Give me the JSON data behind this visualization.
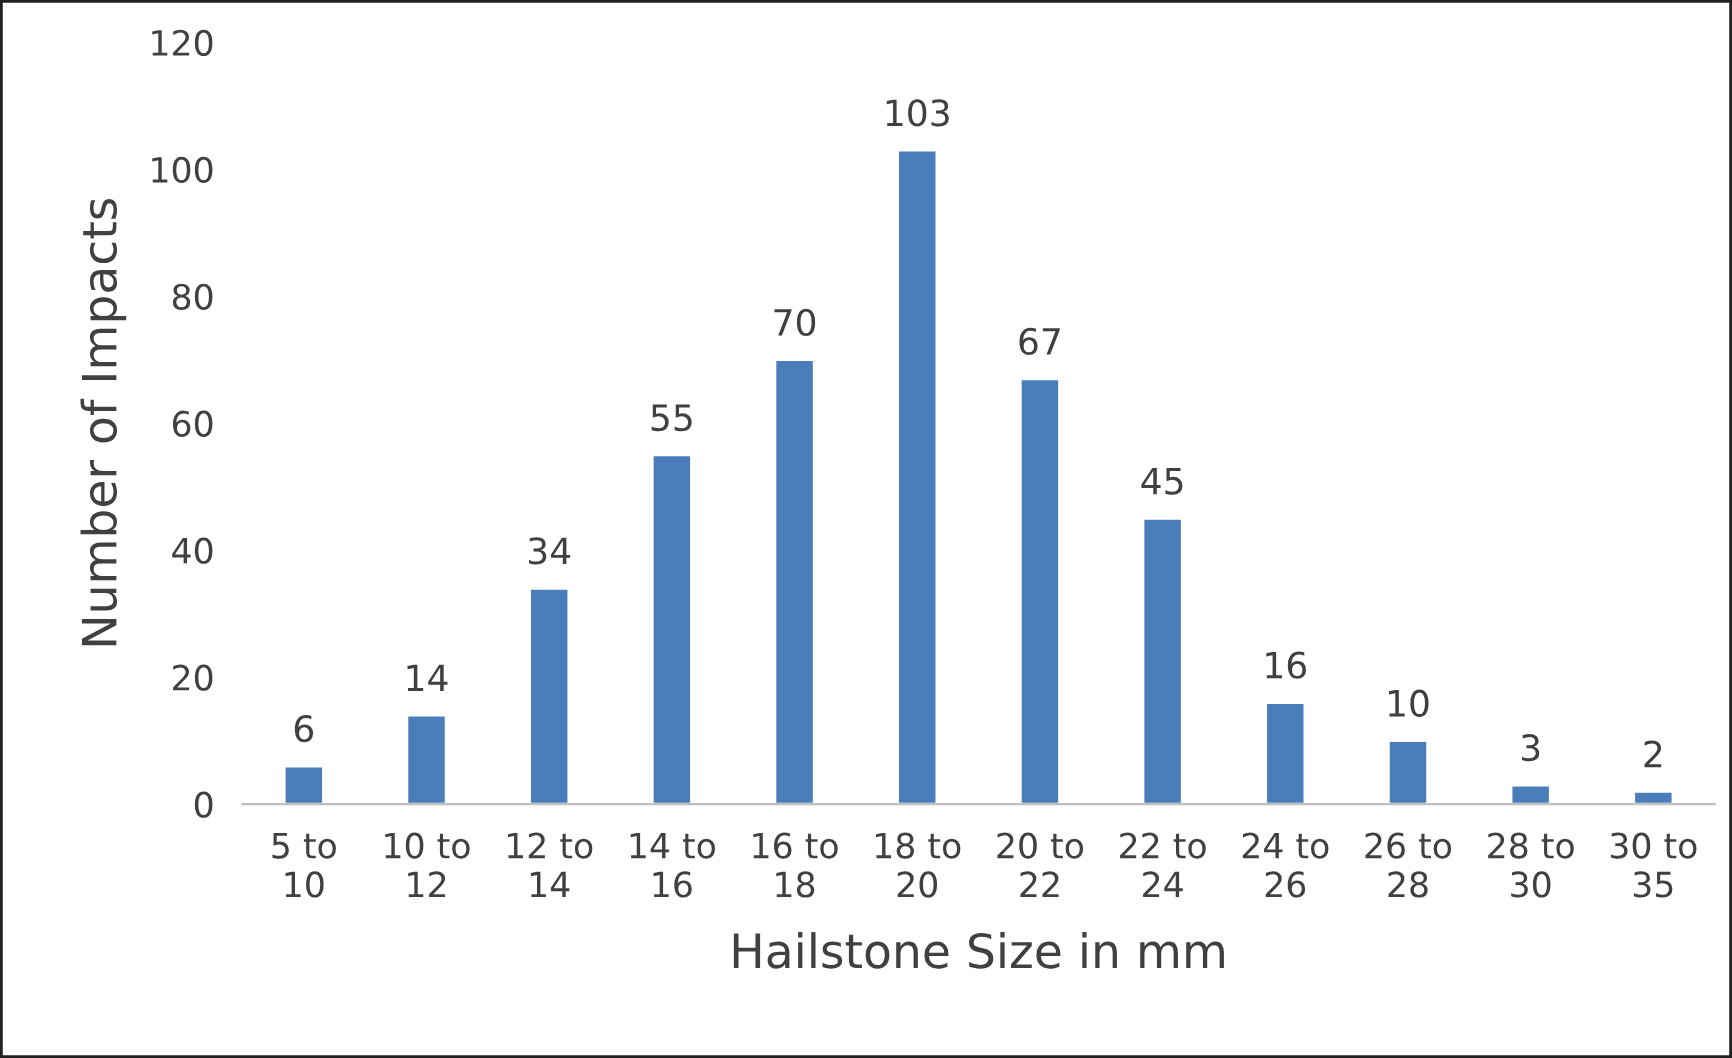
{
  "chart_data": {
    "type": "bar",
    "xlabel": "Hailstone Size in mm",
    "ylabel": "Number of Impacts",
    "categories": [
      "5 to\n10",
      "10 to\n12",
      "12 to\n14",
      "14 to\n16",
      "16 to\n18",
      "18 to\n20",
      "20 to\n22",
      "22 to\n24",
      "24 to\n26",
      "26 to\n28",
      "28 to\n30",
      "30 to\n35"
    ],
    "values": [
      6,
      14,
      34,
      55,
      70,
      103,
      67,
      45,
      16,
      10,
      3,
      2
    ],
    "color": "#4a7ebb",
    "ylim": [
      0,
      120
    ],
    "yticks": [
      0,
      20,
      40,
      60,
      80,
      100,
      120
    ],
    "data_labels": true
  }
}
